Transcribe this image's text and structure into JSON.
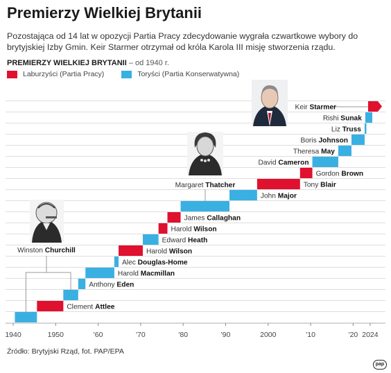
{
  "title": "Premierzy Wielkiej Brytanii",
  "subtitle": "Pozostająca od 14 lat w opozycji Partia Pracy zdecydowanie wygrała czwartkowe wybory do brytyjskiej Izby Gmin. Keir Starmer otrzymał od króla Karola III misję stworzenia rządu.",
  "chart_heading": "PREMIERZY WIELKIEJ BRYTANII",
  "chart_heading_note": "– od 1940 r.",
  "legend": [
    {
      "name": "Laburzyści (Partia Pracy)",
      "color": "#e0102f"
    },
    {
      "name": "Toryści (Partia Konserwatywna)",
      "color": "#3ab0e2"
    }
  ],
  "source": "Źródło: Brytyjski Rząd, fot. PAP/EPA",
  "logo": "pap",
  "chart_data": {
    "type": "bar",
    "orientation": "horizontal-timeline",
    "xlim": [
      1940,
      2024.5
    ],
    "x_ticks": [
      "1940",
      "1950",
      "'60",
      "'70",
      "'80",
      "'90",
      "2000",
      "'10",
      "'20",
      "2024"
    ],
    "x_tick_values": [
      1940,
      1950,
      1960,
      1970,
      1980,
      1990,
      2000,
      2010,
      2020,
      2024
    ],
    "grid": true,
    "series": [
      {
        "first": "Winston",
        "last": "Churchill",
        "start": 1940.4,
        "end": 1945.6,
        "party": "tory"
      },
      {
        "first": "Clement",
        "last": "Attlee",
        "start": 1945.6,
        "end": 1951.8,
        "party": "labour"
      },
      {
        "first": "Winston",
        "last": "Churchill",
        "start": 1951.8,
        "end": 1955.3,
        "party": "tory"
      },
      {
        "first": "Anthony",
        "last": "Eden",
        "start": 1955.3,
        "end": 1957.0,
        "party": "tory"
      },
      {
        "first": "Harold",
        "last": "Macmillan",
        "start": 1957.0,
        "end": 1963.8,
        "party": "tory"
      },
      {
        "first": "Alec",
        "last": "Douglas-Home",
        "start": 1963.8,
        "end": 1964.8,
        "party": "tory"
      },
      {
        "first": "Harold",
        "last": "Wilson",
        "start": 1964.8,
        "end": 1970.5,
        "party": "labour"
      },
      {
        "first": "Edward",
        "last": "Heath",
        "start": 1970.5,
        "end": 1974.2,
        "party": "tory"
      },
      {
        "first": "Harold",
        "last": "Wilson",
        "start": 1974.2,
        "end": 1976.3,
        "party": "labour"
      },
      {
        "first": "James",
        "last": "Callaghan",
        "start": 1976.3,
        "end": 1979.4,
        "party": "labour"
      },
      {
        "first": "Margaret",
        "last": "Thatcher",
        "start": 1979.4,
        "end": 1990.9,
        "party": "tory"
      },
      {
        "first": "John",
        "last": "Major",
        "start": 1990.9,
        "end": 1997.4,
        "party": "tory"
      },
      {
        "first": "Tony",
        "last": "Blair",
        "start": 1997.4,
        "end": 2007.5,
        "party": "labour"
      },
      {
        "first": "Gordon",
        "last": "Brown",
        "start": 2007.5,
        "end": 2010.4,
        "party": "labour"
      },
      {
        "first": "David",
        "last": "Cameron",
        "start": 2010.4,
        "end": 2016.5,
        "party": "tory"
      },
      {
        "first": "Theresa",
        "last": "May",
        "start": 2016.5,
        "end": 2019.6,
        "party": "tory"
      },
      {
        "first": "Boris",
        "last": "Johnson",
        "start": 2019.6,
        "end": 2022.7,
        "party": "tory"
      },
      {
        "first": "Liz",
        "last": "Truss",
        "start": 2022.7,
        "end": 2022.85,
        "party": "tory"
      },
      {
        "first": "Rishi",
        "last": "Sunak",
        "start": 2022.85,
        "end": 2024.5,
        "party": "tory"
      },
      {
        "first": "Keir",
        "last": "Starmer",
        "start": 2024.5,
        "end": 2024.5,
        "party": "labour",
        "current": true
      }
    ]
  }
}
